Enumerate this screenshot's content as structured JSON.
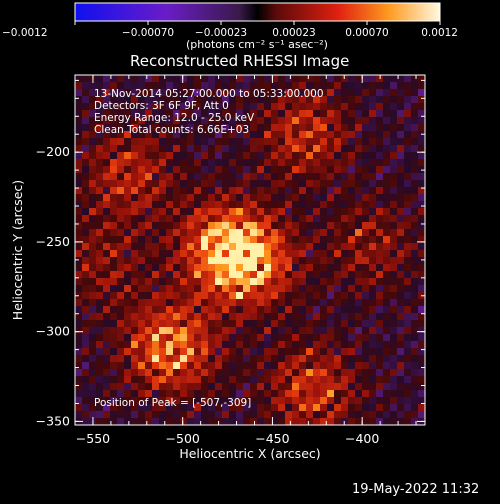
{
  "colorbar": {
    "ticks": [
      "-0.0012",
      "-0.00070",
      "-0.00023",
      "0.00023",
      "0.00070",
      "0.0012"
    ],
    "units": "(photons cm⁻² s⁻¹ asec⁻²)"
  },
  "title": "Reconstructed RHESSI Image",
  "info": {
    "line1": "13-Nov-2014 05:27:00.000 to 05:33:00.000",
    "line2": "Detectors: 3F 6F 9F, Att 0",
    "line3": "Energy Range: 12.0 - 25.0 keV",
    "line4": "Clean     Total counts: 6.66E+03",
    "peak": "Position of Peak = [-507,-309]"
  },
  "timestamp": "19-May-2022 11:32",
  "chart_data": {
    "type": "heatmap",
    "title": "Reconstructed RHESSI Image",
    "xlabel": "Heliocentric X (arcsec)",
    "ylabel": "Heliocentric Y (arcsec)",
    "xlim": [
      -560,
      -365
    ],
    "ylim": [
      -352,
      -157
    ],
    "x_ticks": [
      -550,
      -500,
      -450,
      -400
    ],
    "y_ticks": [
      -200,
      -250,
      -300,
      -350
    ],
    "x_tick_labels": [
      "−550",
      "−500",
      "−450",
      "−400"
    ],
    "y_tick_labels": [
      "−200",
      "−250",
      "−300",
      "−350"
    ],
    "value_range": [
      -0.0012,
      0.0012
    ],
    "peak_position": [
      -507,
      -309
    ],
    "bright_sources": [
      {
        "x": -507,
        "y": -309,
        "intensity": 1.0
      },
      {
        "x": -462,
        "y": -262,
        "intensity": 0.9
      },
      {
        "x": -478,
        "y": -252,
        "intensity": 0.85
      },
      {
        "x": -428,
        "y": -332,
        "intensity": 0.7
      },
      {
        "x": -432,
        "y": -190,
        "intensity": 0.65
      },
      {
        "x": -530,
        "y": -212,
        "intensity": 0.6
      },
      {
        "x": -395,
        "y": -252,
        "intensity": 0.45
      },
      {
        "x": -545,
        "y": -262,
        "intensity": 0.4
      }
    ]
  }
}
